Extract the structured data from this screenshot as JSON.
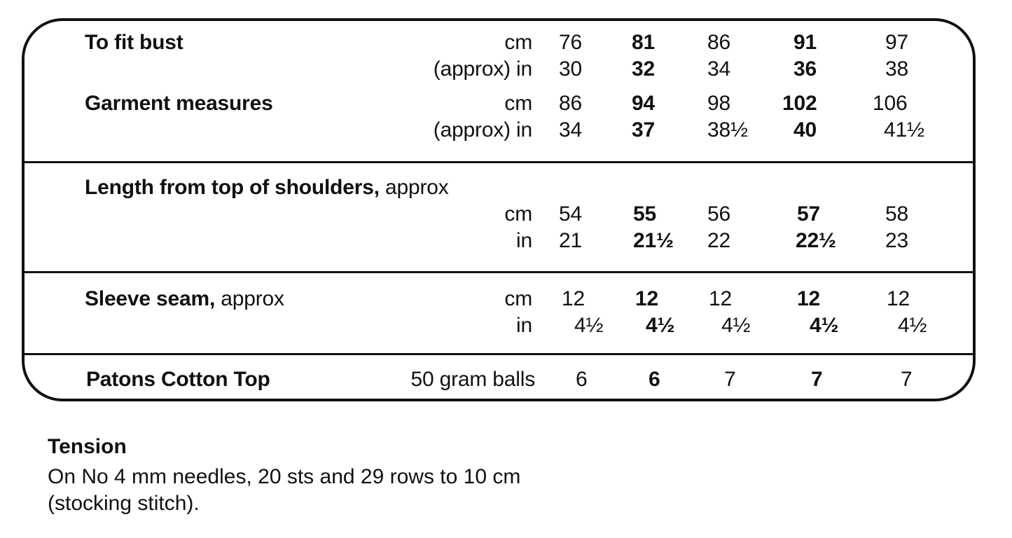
{
  "table": {
    "bust": {
      "label": "To fit bust",
      "unit_cm": "cm",
      "unit_in": "(approx)  in",
      "cm": [
        "76",
        "81",
        "86",
        "91",
        "97"
      ],
      "in": [
        "30",
        "32",
        "34",
        "36",
        "38"
      ]
    },
    "garment": {
      "label": "Garment measures",
      "unit_cm": "cm",
      "unit_in": "(approx)  in",
      "cm": [
        "86",
        "94",
        "98",
        "102",
        "106"
      ],
      "in": [
        "34",
        "37",
        "38½",
        "40",
        "41½"
      ]
    },
    "length": {
      "label": "Length from top of shoulders,",
      "note": "approx",
      "unit_cm": "cm",
      "unit_in": "in",
      "cm": [
        "54",
        "55",
        "56",
        "57",
        "58"
      ],
      "in": [
        "21",
        "21½",
        "22",
        "22½",
        "23"
      ]
    },
    "sleeve": {
      "label": "Sleeve seam,",
      "note": "approx",
      "unit_cm": "cm",
      "unit_in": "in",
      "cm": [
        "12",
        "12",
        "12",
        "12",
        "12"
      ],
      "in": [
        "4½",
        "4½",
        "4½",
        "4½",
        "4½"
      ]
    },
    "yarn": {
      "label": "Patons Cotton Top",
      "unit": "50 gram balls",
      "values": [
        "6",
        "6",
        "7",
        "7",
        "7"
      ]
    }
  },
  "tension": {
    "title": "Tension",
    "line1": "On No 4 mm needles, 20 sts and 29 rows to 10 cm",
    "line2": "(stocking stitch)."
  }
}
